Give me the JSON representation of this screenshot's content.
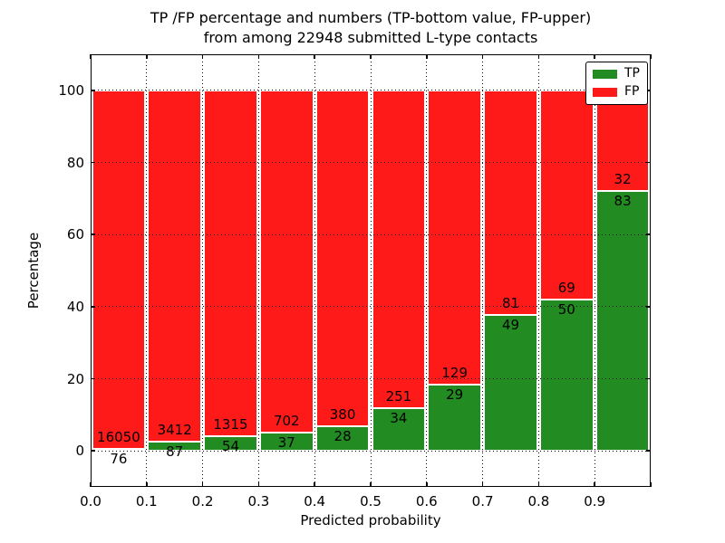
{
  "title": {
    "line1": "TP /FP percentage and numbers (TP-bottom value, FP-upper)",
    "line2": "from among 22948 submitted L-type contacts"
  },
  "axes": {
    "xlabel": "Predicted probability",
    "ylabel": "Percentage",
    "xticks": [
      "0.0",
      "0.1",
      "0.2",
      "0.3",
      "0.4",
      "0.5",
      "0.6",
      "0.7",
      "0.8",
      "0.9"
    ],
    "yticks": [
      "0",
      "20",
      "40",
      "60",
      "80",
      "100"
    ]
  },
  "legend": {
    "items": [
      {
        "label": "TP",
        "color": "#228b22"
      },
      {
        "label": "FP",
        "color": "#ff1a1a"
      }
    ],
    "position": "upper right"
  },
  "colors": {
    "tp": "#228b22",
    "fp": "#ff1a1a",
    "bar_edge": "#ffffff",
    "grid": "#000000",
    "background": "#ffffff"
  },
  "chart_data": {
    "type": "bar",
    "stacked": true,
    "normalized": "each 0.1 probability bin scaled to 100%",
    "title": "TP /FP percentage and numbers (TP-bottom value, FP-upper) from among 22948 submitted L-type contacts",
    "xlabel": "Predicted probability",
    "ylabel": "Percentage",
    "xlim": [
      0.0,
      1.0
    ],
    "ylim": [
      -10,
      110
    ],
    "xticks": [
      0.0,
      0.1,
      0.2,
      0.3,
      0.4,
      0.5,
      0.6,
      0.7,
      0.8,
      0.9
    ],
    "yticks": [
      0,
      20,
      40,
      60,
      80,
      100
    ],
    "grid": "dotted, both axes",
    "legend_position": "upper right",
    "bin_edges": [
      0.0,
      0.1,
      0.2,
      0.3,
      0.4,
      0.5,
      0.6,
      0.7,
      0.8,
      0.9,
      1.0
    ],
    "series": [
      {
        "name": "TP",
        "color": "#228b22",
        "counts": [
          76,
          87,
          54,
          37,
          28,
          34,
          29,
          49,
          50,
          83
        ],
        "percent_of_bin": [
          0.47,
          2.49,
          3.94,
          5.01,
          6.86,
          11.93,
          18.35,
          37.69,
          42.02,
          72.17
        ]
      },
      {
        "name": "FP",
        "color": "#ff1a1a",
        "counts": [
          16050,
          3412,
          1315,
          702,
          380,
          251,
          129,
          81,
          69,
          32
        ],
        "percent_of_bin": [
          99.53,
          97.51,
          96.06,
          94.99,
          93.14,
          88.07,
          81.65,
          62.31,
          57.98,
          27.83
        ]
      }
    ],
    "total_contacts": 22948
  }
}
